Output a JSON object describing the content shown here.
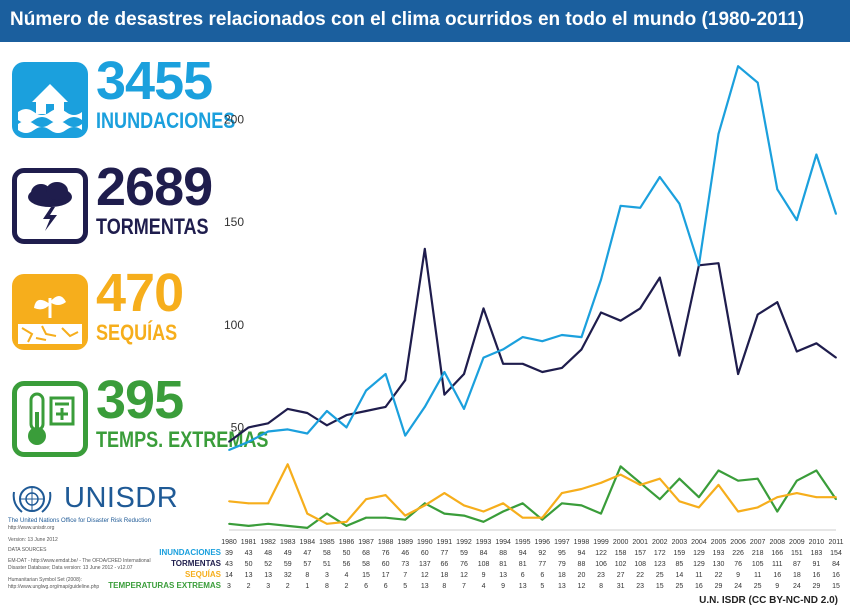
{
  "title": "Número de desastres relacionados con el clima ocurridos en todo el mundo (1980-2011)",
  "stats": [
    {
      "number": "3455",
      "label": "INUNDACIONES",
      "color": "#1ba0dd",
      "icon": "flood-house-icon"
    },
    {
      "number": "2689",
      "label": "TORMENTAS",
      "color": "#1f1d4d",
      "icon": "storm-cloud-icon"
    },
    {
      "number": "470",
      "label": "SEQUÍAS",
      "color": "#f6ae1c",
      "icon": "drought-plant-icon"
    },
    {
      "number": "395",
      "label": "TEMPS. EXTREMAS",
      "color": "#3a9d3a",
      "icon": "thermometer-icon"
    }
  ],
  "unisdr": {
    "name": "UNISDR",
    "subtitle": "The United Nations Office for Disaster Risk Reduction",
    "url": "http://www.unisdr.org"
  },
  "meta": {
    "version": "Version: 13 June 2012",
    "sources_title": "DATA SOURCES",
    "source1": "EM-DAT - http://www.emdat.be/ - The OFDA/CRED International",
    "source2": "Disaster Database; Data version: 13 June 2012 - v12.07",
    "source3": "Humanitarian Symbol Set (2008):",
    "source4": "http://www.unglwg.org/map/guideline.php"
  },
  "credit": "U.N. ISDR (CC BY-NC-ND 2.0)",
  "chart_data": {
    "type": "line",
    "title": "Número de desastres relacionados con el clima ocurridos en todo el mundo (1980-2011)",
    "xlabel": "",
    "ylabel": "",
    "ylim": [
      0,
      230
    ],
    "yticks": [
      50,
      100,
      150,
      200
    ],
    "x": [
      "1980",
      "1981",
      "1982",
      "1983",
      "1984",
      "1985",
      "1986",
      "1987",
      "1988",
      "1989",
      "1990",
      "1991",
      "1992",
      "1993",
      "1994",
      "1995",
      "1996",
      "1997",
      "1998",
      "1999",
      "2000",
      "2001",
      "2002",
      "2003",
      "2004",
      "2005",
      "2006",
      "2007",
      "2008",
      "2009",
      "2010",
      "2011"
    ],
    "series": [
      {
        "name": "INUNDACIONES",
        "color": "#1ba0dd",
        "values": [
          39,
          43,
          48,
          49,
          47,
          58,
          50,
          68,
          76,
          46,
          60,
          77,
          59,
          84,
          88,
          94,
          92,
          95,
          94,
          122,
          158,
          157,
          172,
          159,
          129,
          193,
          226,
          218,
          166,
          151,
          183,
          154
        ]
      },
      {
        "name": "TORMENTAS",
        "color": "#1f1d4d",
        "values": [
          43,
          50,
          52,
          59,
          57,
          51,
          56,
          58,
          60,
          73,
          137,
          66,
          76,
          108,
          81,
          81,
          77,
          79,
          88,
          106,
          102,
          108,
          123,
          85,
          129,
          130,
          76,
          105,
          111,
          87,
          91,
          84
        ]
      },
      {
        "name": "SEQUÍAS",
        "color": "#f6ae1c",
        "values": [
          14,
          13,
          13,
          32,
          8,
          3,
          4,
          15,
          17,
          7,
          12,
          18,
          12,
          9,
          13,
          6,
          6,
          18,
          20,
          23,
          27,
          22,
          25,
          14,
          11,
          22,
          9,
          11,
          16,
          18,
          16,
          16
        ]
      },
      {
        "name": "TEMPERATURAS EXTREMAS",
        "color": "#3a9d3a",
        "values": [
          3,
          2,
          3,
          2,
          1,
          8,
          2,
          6,
          6,
          5,
          13,
          8,
          7,
          4,
          9,
          13,
          5,
          13,
          12,
          8,
          31,
          23,
          15,
          25,
          16,
          29,
          24,
          25,
          9,
          24,
          29,
          15
        ]
      }
    ]
  }
}
